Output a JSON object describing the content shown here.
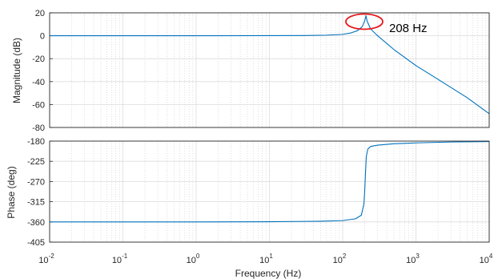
{
  "chart_data": [
    {
      "type": "line",
      "ylabel": "Magnitude (dB)",
      "xlabel": "",
      "xscale": "log",
      "xlim": [
        0.01,
        10000
      ],
      "ylim": [
        -80,
        20
      ],
      "yticks": [
        20,
        0,
        -20,
        -40,
        -60,
        -80
      ],
      "grid": true,
      "colors": {
        "line": "#0072bd",
        "annotation": "#e8191c"
      },
      "series": [
        {
          "x": [
            0.01,
            0.1,
            1,
            10,
            30,
            60,
            100,
            130,
            160,
            185,
            200,
            208,
            215,
            240,
            300,
            500,
            1000,
            2000,
            5000,
            10000
          ],
          "values": [
            0,
            0,
            0,
            0.1,
            0.2,
            0.5,
            1.2,
            2.5,
            4.5,
            8,
            13,
            17.5,
            13,
            6,
            0,
            -12,
            -26,
            -38,
            -54,
            -68
          ]
        }
      ],
      "annotation": {
        "text": "208 Hz",
        "x": 208,
        "y": 12
      }
    },
    {
      "type": "line",
      "ylabel": "Phase (deg)",
      "xlabel": "Frequency  (Hz)",
      "xscale": "log",
      "xlim": [
        0.01,
        10000
      ],
      "ylim": [
        -405,
        -180
      ],
      "yticks": [
        -180,
        -225,
        -270,
        -315,
        -360,
        -405
      ],
      "xticks": [
        {
          "base": "10",
          "exp": "-2"
        },
        {
          "base": "10",
          "exp": "-1"
        },
        {
          "base": "10",
          "exp": "0"
        },
        {
          "base": "10",
          "exp": "1"
        },
        {
          "base": "10",
          "exp": "2"
        },
        {
          "base": "10",
          "exp": "3"
        },
        {
          "base": "10",
          "exp": "4"
        }
      ],
      "grid": true,
      "colors": {
        "line": "#0072bd"
      },
      "series": [
        {
          "x": [
            0.01,
            1,
            10,
            50,
            100,
            150,
            180,
            195,
            200,
            205,
            210,
            220,
            240,
            300,
            500,
            1000,
            3000,
            10000
          ],
          "values": [
            -360,
            -360,
            -359.5,
            -358.5,
            -357,
            -353,
            -345,
            -320,
            -290,
            -250,
            -215,
            -198,
            -192,
            -189,
            -186,
            -184,
            -182,
            -181
          ]
        }
      ]
    }
  ]
}
